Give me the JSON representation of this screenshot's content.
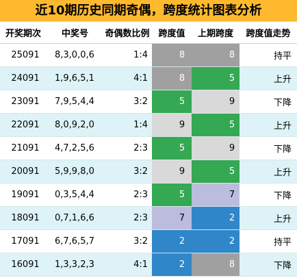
{
  "title": "近10期历史同期奇偶，跨度统计图表分析",
  "columns": [
    "开奖期次",
    "中奖号",
    "奇偶数比例",
    "跨度值",
    "上期跨度",
    "跨度值走势"
  ],
  "colors": {
    "title_bg": "#ffb92e",
    "row_alt": "#def3f7",
    "gray": "#a0a0a0",
    "green": "#34a853",
    "light": "#d9d9d9",
    "lavender": "#bcbcde",
    "blue": "#2f86c8"
  },
  "rows": [
    {
      "period": "25091",
      "numbers": "8,3,0,0,6",
      "ratio": "1:4",
      "span": "8",
      "span_color": "gray",
      "prev_span": "8",
      "prev_color": "gray",
      "trend": "持平"
    },
    {
      "period": "24091",
      "numbers": "1,9,6,5,1",
      "ratio": "4:1",
      "span": "8",
      "span_color": "gray",
      "prev_span": "5",
      "prev_color": "green",
      "trend": "上升"
    },
    {
      "period": "23091",
      "numbers": "7,9,5,4,4",
      "ratio": "3:2",
      "span": "5",
      "span_color": "green",
      "prev_span": "9",
      "prev_color": "light",
      "trend": "下降"
    },
    {
      "period": "22091",
      "numbers": "8,0,9,2,0",
      "ratio": "1:4",
      "span": "9",
      "span_color": "light",
      "prev_span": "5",
      "prev_color": "green",
      "trend": "上升"
    },
    {
      "period": "21091",
      "numbers": "4,7,2,5,6",
      "ratio": "2:3",
      "span": "5",
      "span_color": "green",
      "prev_span": "9",
      "prev_color": "light",
      "trend": "下降"
    },
    {
      "period": "20091",
      "numbers": "5,9,9,8,0",
      "ratio": "3:2",
      "span": "9",
      "span_color": "light",
      "prev_span": "5",
      "prev_color": "green",
      "trend": "上升"
    },
    {
      "period": "19091",
      "numbers": "0,3,5,4,4",
      "ratio": "2:3",
      "span": "5",
      "span_color": "green",
      "prev_span": "7",
      "prev_color": "lavender",
      "trend": "下降"
    },
    {
      "period": "18091",
      "numbers": "0,7,1,6,6",
      "ratio": "2:3",
      "span": "7",
      "span_color": "lavender",
      "prev_span": "2",
      "prev_color": "blue",
      "trend": "上升"
    },
    {
      "period": "17091",
      "numbers": "6,7,6,5,7",
      "ratio": "3:2",
      "span": "2",
      "span_color": "blue",
      "prev_span": "2",
      "prev_color": "blue",
      "trend": "持平"
    },
    {
      "period": "16091",
      "numbers": "1,3,3,2,3",
      "ratio": "4:1",
      "span": "2",
      "span_color": "blue",
      "prev_span": "8",
      "prev_color": "gray",
      "trend": "下降"
    }
  ]
}
